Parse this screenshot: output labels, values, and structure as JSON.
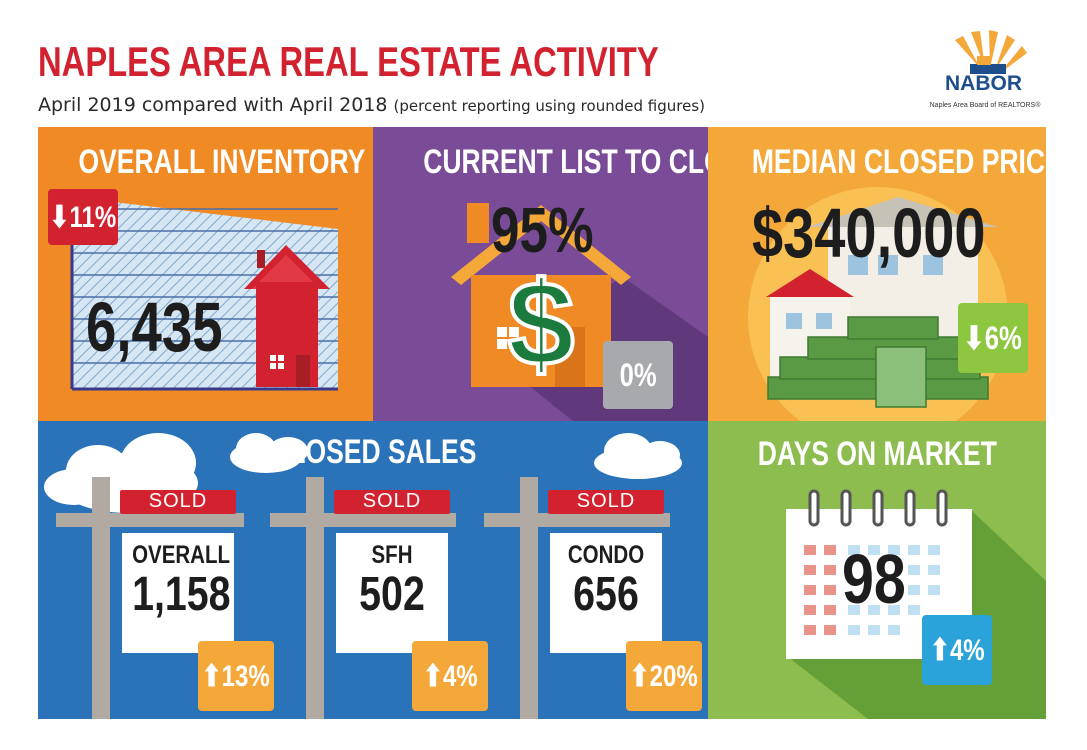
{
  "header": {
    "title": "NAPLES AREA REAL ESTATE ACTIVITY",
    "subtitle": "April 2019 compared with April 2018",
    "subtitle_note": "(percent reporting using rounded figures)"
  },
  "logo": {
    "name": "NABOR",
    "full_name": "Naples Area Board of REALTORS®"
  },
  "overall_inventory": {
    "title": "OVERALL INVENTORY",
    "value": "6,435",
    "change": "⬇11%",
    "change_direction": "down",
    "badge_color": "#d3222f"
  },
  "list_to_closed": {
    "title": "CURRENT LIST TO CLOSED",
    "value": "95%",
    "change": "0%",
    "badge_color": "#a7a9ac"
  },
  "median_price": {
    "title": "MEDIAN CLOSED PRICE",
    "value": "$340,000",
    "change": "⬇6%",
    "change_direction": "down",
    "badge_color": "#8dc63f"
  },
  "closed_sales": {
    "title": "CLOSED SALES",
    "sign_label": "SOLD",
    "items": [
      {
        "label": "OVERALL",
        "value": "1,158",
        "change": "⬆13%"
      },
      {
        "label": "SFH",
        "value": "502",
        "change": "⬆4%"
      },
      {
        "label": "CONDO",
        "value": "656",
        "change": "⬆20%"
      }
    ],
    "badge_color": "#f5a83a"
  },
  "days_on_market": {
    "title": "DAYS ON MARKET",
    "value": "98",
    "change": "⬆4%",
    "change_direction": "up",
    "badge_color": "#2aa3db"
  }
}
